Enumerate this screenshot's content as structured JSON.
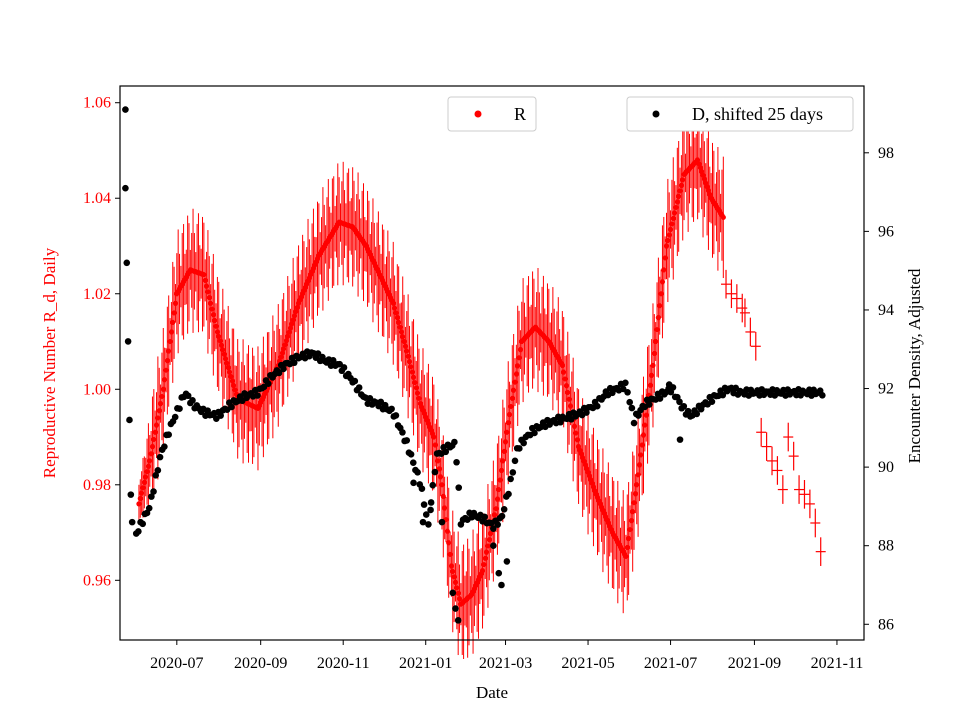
{
  "chart_data": {
    "type": "scatter",
    "title": "",
    "xlabel": "Date",
    "ylabel_left": "Reproductive Number R_d, Daily",
    "ylabel_right": "Encounter Density, Adjusted",
    "x_ticks": [
      "2020-07",
      "2020-09",
      "2020-11",
      "2021-01",
      "2021-03",
      "2021-05",
      "2021-07",
      "2021-09",
      "2021-11"
    ],
    "y_left_ticks": [
      "0.96",
      "0.98",
      "1.00",
      "1.02",
      "1.04",
      "1.06"
    ],
    "y_right_ticks": [
      "86",
      "88",
      "90",
      "92",
      "94",
      "96",
      "98"
    ],
    "y_left_range": [
      0.9475,
      1.0635
    ],
    "y_right_range": [
      85.6,
      99.7
    ],
    "x_range_days": [
      -42,
      508
    ],
    "x_origin_date": "2020-07-01",
    "legend": [
      {
        "label": "R",
        "color": "#ff0000",
        "position": "top-center"
      },
      {
        "label": "D, shifted 25 days",
        "color": "#000000",
        "position": "top-right"
      }
    ],
    "colors": {
      "R": "#ff0000",
      "D": "#000000",
      "left_axis": "#ff0000"
    },
    "series_R_anchors": [
      [
        -28,
        0.976
      ],
      [
        -20,
        0.985
      ],
      [
        -10,
        1.0
      ],
      [
        -4,
        1.012
      ],
      [
        0,
        1.02
      ],
      [
        10,
        1.025
      ],
      [
        20,
        1.024
      ],
      [
        30,
        1.012
      ],
      [
        45,
        0.998
      ],
      [
        60,
        0.996
      ],
      [
        75,
        1.005
      ],
      [
        90,
        1.018
      ],
      [
        105,
        1.028
      ],
      [
        120,
        1.035
      ],
      [
        130,
        1.034
      ],
      [
        140,
        1.03
      ],
      [
        150,
        1.024
      ],
      [
        160,
        1.018
      ],
      [
        170,
        1.008
      ],
      [
        180,
        0.997
      ],
      [
        190,
        0.99
      ],
      [
        196,
        0.98
      ],
      [
        203,
        0.963
      ],
      [
        210,
        0.955
      ],
      [
        218,
        0.957
      ],
      [
        226,
        0.962
      ],
      [
        236,
        0.975
      ],
      [
        245,
        0.993
      ],
      [
        255,
        1.01
      ],
      [
        265,
        1.013
      ],
      [
        275,
        1.01
      ],
      [
        285,
        1.005
      ],
      [
        297,
        0.988
      ],
      [
        310,
        0.978
      ],
      [
        322,
        0.97
      ],
      [
        332,
        0.965
      ],
      [
        340,
        0.98
      ],
      [
        352,
        1.005
      ],
      [
        362,
        1.03
      ],
      [
        375,
        1.045
      ],
      [
        385,
        1.048
      ],
      [
        395,
        1.04
      ],
      [
        404,
        1.036
      ]
    ],
    "series_R_sparse": [
      [
        406,
        1.022
      ],
      [
        410,
        1.02
      ],
      [
        414,
        1.019
      ],
      [
        418,
        1.017
      ],
      [
        420,
        1.016
      ],
      [
        424,
        1.012
      ],
      [
        428,
        1.009
      ],
      [
        432,
        0.991
      ],
      [
        436,
        0.988
      ],
      [
        440,
        0.985
      ],
      [
        444,
        0.983
      ],
      [
        448,
        0.979
      ],
      [
        452,
        0.99
      ],
      [
        456,
        0.986
      ],
      [
        460,
        0.979
      ],
      [
        464,
        0.978
      ],
      [
        468,
        0.976
      ],
      [
        472,
        0.972
      ],
      [
        476,
        0.966
      ]
    ],
    "series_D_anchors": [
      [
        -30,
        88.3
      ],
      [
        -20,
        89.0
      ],
      [
        -12,
        90.3
      ],
      [
        -5,
        91.0
      ],
      [
        0,
        91.4
      ],
      [
        6,
        91.9
      ],
      [
        12,
        91.6
      ],
      [
        20,
        91.4
      ],
      [
        30,
        91.3
      ],
      [
        40,
        91.6
      ],
      [
        50,
        91.8
      ],
      [
        60,
        91.9
      ],
      [
        70,
        92.3
      ],
      [
        80,
        92.6
      ],
      [
        90,
        92.8
      ],
      [
        100,
        92.9
      ],
      [
        110,
        92.7
      ],
      [
        120,
        92.6
      ],
      [
        130,
        92.2
      ],
      [
        140,
        91.7
      ],
      [
        150,
        91.6
      ],
      [
        160,
        91.4
      ],
      [
        170,
        90.6
      ],
      [
        180,
        89.6
      ],
      [
        186,
        88.5
      ],
      [
        192,
        90.3
      ],
      [
        200,
        90.5
      ],
      [
        206,
        90.6
      ],
      [
        210,
        88.6
      ],
      [
        218,
        88.8
      ],
      [
        226,
        88.7
      ],
      [
        234,
        88.5
      ],
      [
        240,
        88.7
      ],
      [
        246,
        89.5
      ],
      [
        252,
        90.5
      ],
      [
        262,
        90.9
      ],
      [
        272,
        91.1
      ],
      [
        282,
        91.2
      ],
      [
        292,
        91.3
      ],
      [
        300,
        91.4
      ],
      [
        310,
        91.6
      ],
      [
        318,
        91.9
      ],
      [
        326,
        92.0
      ],
      [
        332,
        92.1
      ],
      [
        338,
        91.2
      ],
      [
        346,
        91.6
      ],
      [
        356,
        91.8
      ],
      [
        366,
        92.0
      ],
      [
        374,
        91.5
      ],
      [
        380,
        91.3
      ],
      [
        390,
        91.6
      ],
      [
        398,
        91.8
      ],
      [
        408,
        92.0
      ],
      [
        416,
        91.9
      ],
      [
        430,
        91.9
      ],
      [
        450,
        91.9
      ],
      [
        478,
        91.9
      ]
    ],
    "series_D_outliers": [
      [
        -38,
        99.1
      ],
      [
        -38,
        97.1
      ],
      [
        -37,
        95.2
      ],
      [
        -36,
        93.2
      ],
      [
        -35,
        91.2
      ],
      [
        -34,
        89.3
      ],
      [
        -33,
        88.6
      ],
      [
        175,
        89.6
      ],
      [
        182,
        88.6
      ],
      [
        188,
        89.1
      ],
      [
        196,
        88.6
      ],
      [
        204,
        86.8
      ],
      [
        206,
        86.4
      ],
      [
        208,
        86.1
      ],
      [
        234,
        88.0
      ],
      [
        238,
        87.3
      ],
      [
        240,
        87.0
      ],
      [
        244,
        87.6
      ],
      [
        372,
        90.7
      ],
      [
        364,
        92.1
      ]
    ]
  }
}
